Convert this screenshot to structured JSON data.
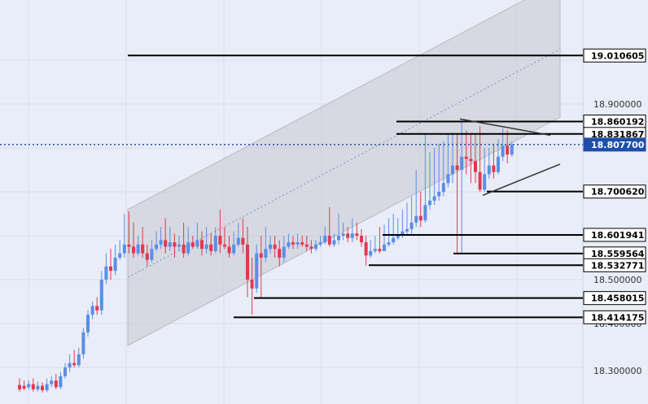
{
  "chart_data": {
    "type": "candlestick",
    "colors": {
      "background": "#e9edf7",
      "up": "#5b8ee6",
      "down": "#e2384f",
      "grid": "#d9deea",
      "channel_fill": "#c6c8cf",
      "current_price_tag": "#1f4fa8"
    },
    "y_axis": {
      "tick_labels": [
        "18.900000",
        "18.500000",
        "18.400000",
        "18.300000"
      ]
    },
    "current_price": "18.807700",
    "levels": [
      {
        "price": 19.010605,
        "label": "19.010605"
      },
      {
        "price": 18.860192,
        "label": "18.860192"
      },
      {
        "price": 18.831867,
        "label": "18.831867"
      },
      {
        "price": 18.8077,
        "label": "18.807700",
        "current": true
      },
      {
        "price": 18.70062,
        "label": "18.700620"
      },
      {
        "price": 18.601941,
        "label": "18.601941"
      },
      {
        "price": 18.559564,
        "label": "18.559564"
      },
      {
        "price": 18.532771,
        "label": "18.532771"
      },
      {
        "price": 18.458015,
        "label": "18.458015"
      },
      {
        "price": 18.414175,
        "label": "18.414175"
      }
    ],
    "candles": [
      [
        18.26,
        18.25,
        18.275,
        18.245
      ],
      [
        18.258,
        18.252,
        18.27,
        18.248
      ],
      [
        18.255,
        18.262,
        18.27,
        18.25
      ],
      [
        18.262,
        18.25,
        18.275,
        18.245
      ],
      [
        18.25,
        18.258,
        18.268,
        18.245
      ],
      [
        18.258,
        18.248,
        18.266,
        18.243
      ],
      [
        18.248,
        18.262,
        18.275,
        18.244
      ],
      [
        18.262,
        18.27,
        18.28,
        18.255
      ],
      [
        18.27,
        18.255,
        18.285,
        18.25
      ],
      [
        18.255,
        18.28,
        18.29,
        18.25
      ],
      [
        18.28,
        18.3,
        18.31,
        18.275
      ],
      [
        18.3,
        18.31,
        18.33,
        18.29
      ],
      [
        18.31,
        18.305,
        18.34,
        18.3
      ],
      [
        18.305,
        18.33,
        18.345,
        18.3
      ],
      [
        18.33,
        18.38,
        18.39,
        18.32
      ],
      [
        18.38,
        18.42,
        18.43,
        18.37
      ],
      [
        18.42,
        18.44,
        18.45,
        18.41
      ],
      [
        18.44,
        18.43,
        18.46,
        18.42
      ],
      [
        18.43,
        18.5,
        18.52,
        18.42
      ],
      [
        18.5,
        18.53,
        18.56,
        18.49
      ],
      [
        18.53,
        18.52,
        18.57,
        18.5
      ],
      [
        18.52,
        18.55,
        18.58,
        18.51
      ],
      [
        18.55,
        18.56,
        18.59,
        18.545
      ],
      [
        18.56,
        18.58,
        18.65,
        18.55
      ],
      [
        18.58,
        18.575,
        18.655,
        18.56
      ],
      [
        18.575,
        18.56,
        18.63,
        18.55
      ],
      [
        18.56,
        18.58,
        18.6,
        18.555
      ],
      [
        18.58,
        18.56,
        18.62,
        18.55
      ],
      [
        18.56,
        18.545,
        18.58,
        18.53
      ],
      [
        18.545,
        18.57,
        18.59,
        18.54
      ],
      [
        18.57,
        18.58,
        18.61,
        18.565
      ],
      [
        18.58,
        18.59,
        18.62,
        18.57
      ],
      [
        18.59,
        18.575,
        18.64,
        18.56
      ],
      [
        18.575,
        18.585,
        18.62,
        18.565
      ],
      [
        18.585,
        18.575,
        18.605,
        18.55
      ],
      [
        18.575,
        18.58,
        18.6,
        18.565
      ],
      [
        18.58,
        18.56,
        18.63,
        18.55
      ],
      [
        18.56,
        18.585,
        18.62,
        18.555
      ],
      [
        18.585,
        18.575,
        18.6,
        18.57
      ],
      [
        18.575,
        18.59,
        18.63,
        18.57
      ],
      [
        18.59,
        18.57,
        18.61,
        18.555
      ],
      [
        18.57,
        18.58,
        18.62,
        18.56
      ],
      [
        18.58,
        18.565,
        18.605,
        18.555
      ],
      [
        18.565,
        18.6,
        18.62,
        18.56
      ],
      [
        18.6,
        18.58,
        18.66,
        18.56
      ],
      [
        18.58,
        18.575,
        18.62,
        18.57
      ],
      [
        18.575,
        18.56,
        18.6,
        18.55
      ],
      [
        18.56,
        18.58,
        18.61,
        18.555
      ],
      [
        18.58,
        18.595,
        18.63,
        18.575
      ],
      [
        18.595,
        18.58,
        18.64,
        18.56
      ],
      [
        18.58,
        18.5,
        18.62,
        18.46
      ],
      [
        18.5,
        18.48,
        18.55,
        18.42
      ],
      [
        18.48,
        18.56,
        18.58,
        18.47
      ],
      [
        18.56,
        18.55,
        18.6,
        18.46
      ],
      [
        18.55,
        18.57,
        18.62,
        18.54
      ],
      [
        18.57,
        18.58,
        18.6,
        18.56
      ],
      [
        18.58,
        18.57,
        18.6,
        18.55
      ],
      [
        18.57,
        18.55,
        18.59,
        18.53
      ],
      [
        18.55,
        18.575,
        18.6,
        18.54
      ],
      [
        18.575,
        18.585,
        18.605,
        18.57
      ],
      [
        18.585,
        18.58,
        18.6,
        18.57
      ],
      [
        18.58,
        18.585,
        18.605,
        18.57
      ],
      [
        18.585,
        18.58,
        18.6,
        18.575
      ],
      [
        18.58,
        18.575,
        18.6,
        18.565
      ],
      [
        18.575,
        18.57,
        18.59,
        18.56
      ],
      [
        18.57,
        18.58,
        18.59,
        18.565
      ],
      [
        18.58,
        18.585,
        18.6,
        18.575
      ],
      [
        18.585,
        18.6,
        18.62,
        18.58
      ],
      [
        18.6,
        18.58,
        18.665,
        18.575
      ],
      [
        18.58,
        18.59,
        18.605,
        18.575
      ],
      [
        18.59,
        18.6,
        18.65,
        18.58
      ],
      [
        18.6,
        18.605,
        18.63,
        18.59
      ],
      [
        18.605,
        18.595,
        18.62,
        18.585
      ],
      [
        18.595,
        18.605,
        18.64,
        18.585
      ],
      [
        18.605,
        18.6,
        18.63,
        18.59
      ],
      [
        18.6,
        18.585,
        18.615,
        18.575
      ],
      [
        18.585,
        18.555,
        18.6,
        18.532
      ],
      [
        18.555,
        18.565,
        18.59,
        18.55
      ],
      [
        18.565,
        18.57,
        18.6,
        18.56
      ],
      [
        18.57,
        18.565,
        18.62,
        18.56
      ],
      [
        18.565,
        18.58,
        18.625,
        18.565
      ],
      [
        18.58,
        18.585,
        18.64,
        18.575
      ],
      [
        18.585,
        18.595,
        18.65,
        18.58
      ],
      [
        18.595,
        18.6,
        18.64,
        18.59
      ],
      [
        18.6,
        18.61,
        18.66,
        18.595
      ],
      [
        18.61,
        18.615,
        18.675,
        18.6
      ],
      [
        18.615,
        18.63,
        18.69,
        18.6
      ],
      [
        18.63,
        18.645,
        18.75,
        18.62
      ],
      [
        18.645,
        18.635,
        18.7,
        18.62
      ],
      [
        18.635,
        18.67,
        18.831,
        18.63
      ],
      [
        18.67,
        18.68,
        18.79,
        18.66
      ],
      [
        18.68,
        18.69,
        18.8,
        18.67
      ],
      [
        18.69,
        18.7,
        18.81,
        18.68
      ],
      [
        18.7,
        18.72,
        18.815,
        18.69
      ],
      [
        18.72,
        18.74,
        18.83,
        18.71
      ],
      [
        18.74,
        18.76,
        18.835,
        18.72
      ],
      [
        18.76,
        18.75,
        18.83,
        18.56
      ],
      [
        18.75,
        18.78,
        18.86,
        18.56
      ],
      [
        18.78,
        18.775,
        18.84,
        18.74
      ],
      [
        18.775,
        18.77,
        18.83,
        18.72
      ],
      [
        18.77,
        18.745,
        18.83,
        18.72
      ],
      [
        18.745,
        18.705,
        18.85,
        18.7
      ],
      [
        18.705,
        18.74,
        18.8,
        18.7
      ],
      [
        18.74,
        18.76,
        18.8,
        18.73
      ],
      [
        18.76,
        18.745,
        18.81,
        18.73
      ],
      [
        18.745,
        18.78,
        18.82,
        18.74
      ],
      [
        18.78,
        18.805,
        18.845,
        18.77
      ],
      [
        18.805,
        18.785,
        18.84,
        18.765
      ],
      [
        18.785,
        18.808,
        18.815,
        18.78
      ]
    ],
    "channel": {
      "start_index": 17,
      "end_index": 74,
      "base_start": 18.35,
      "base_end": 18.87,
      "top_offset": 0.31
    }
  }
}
